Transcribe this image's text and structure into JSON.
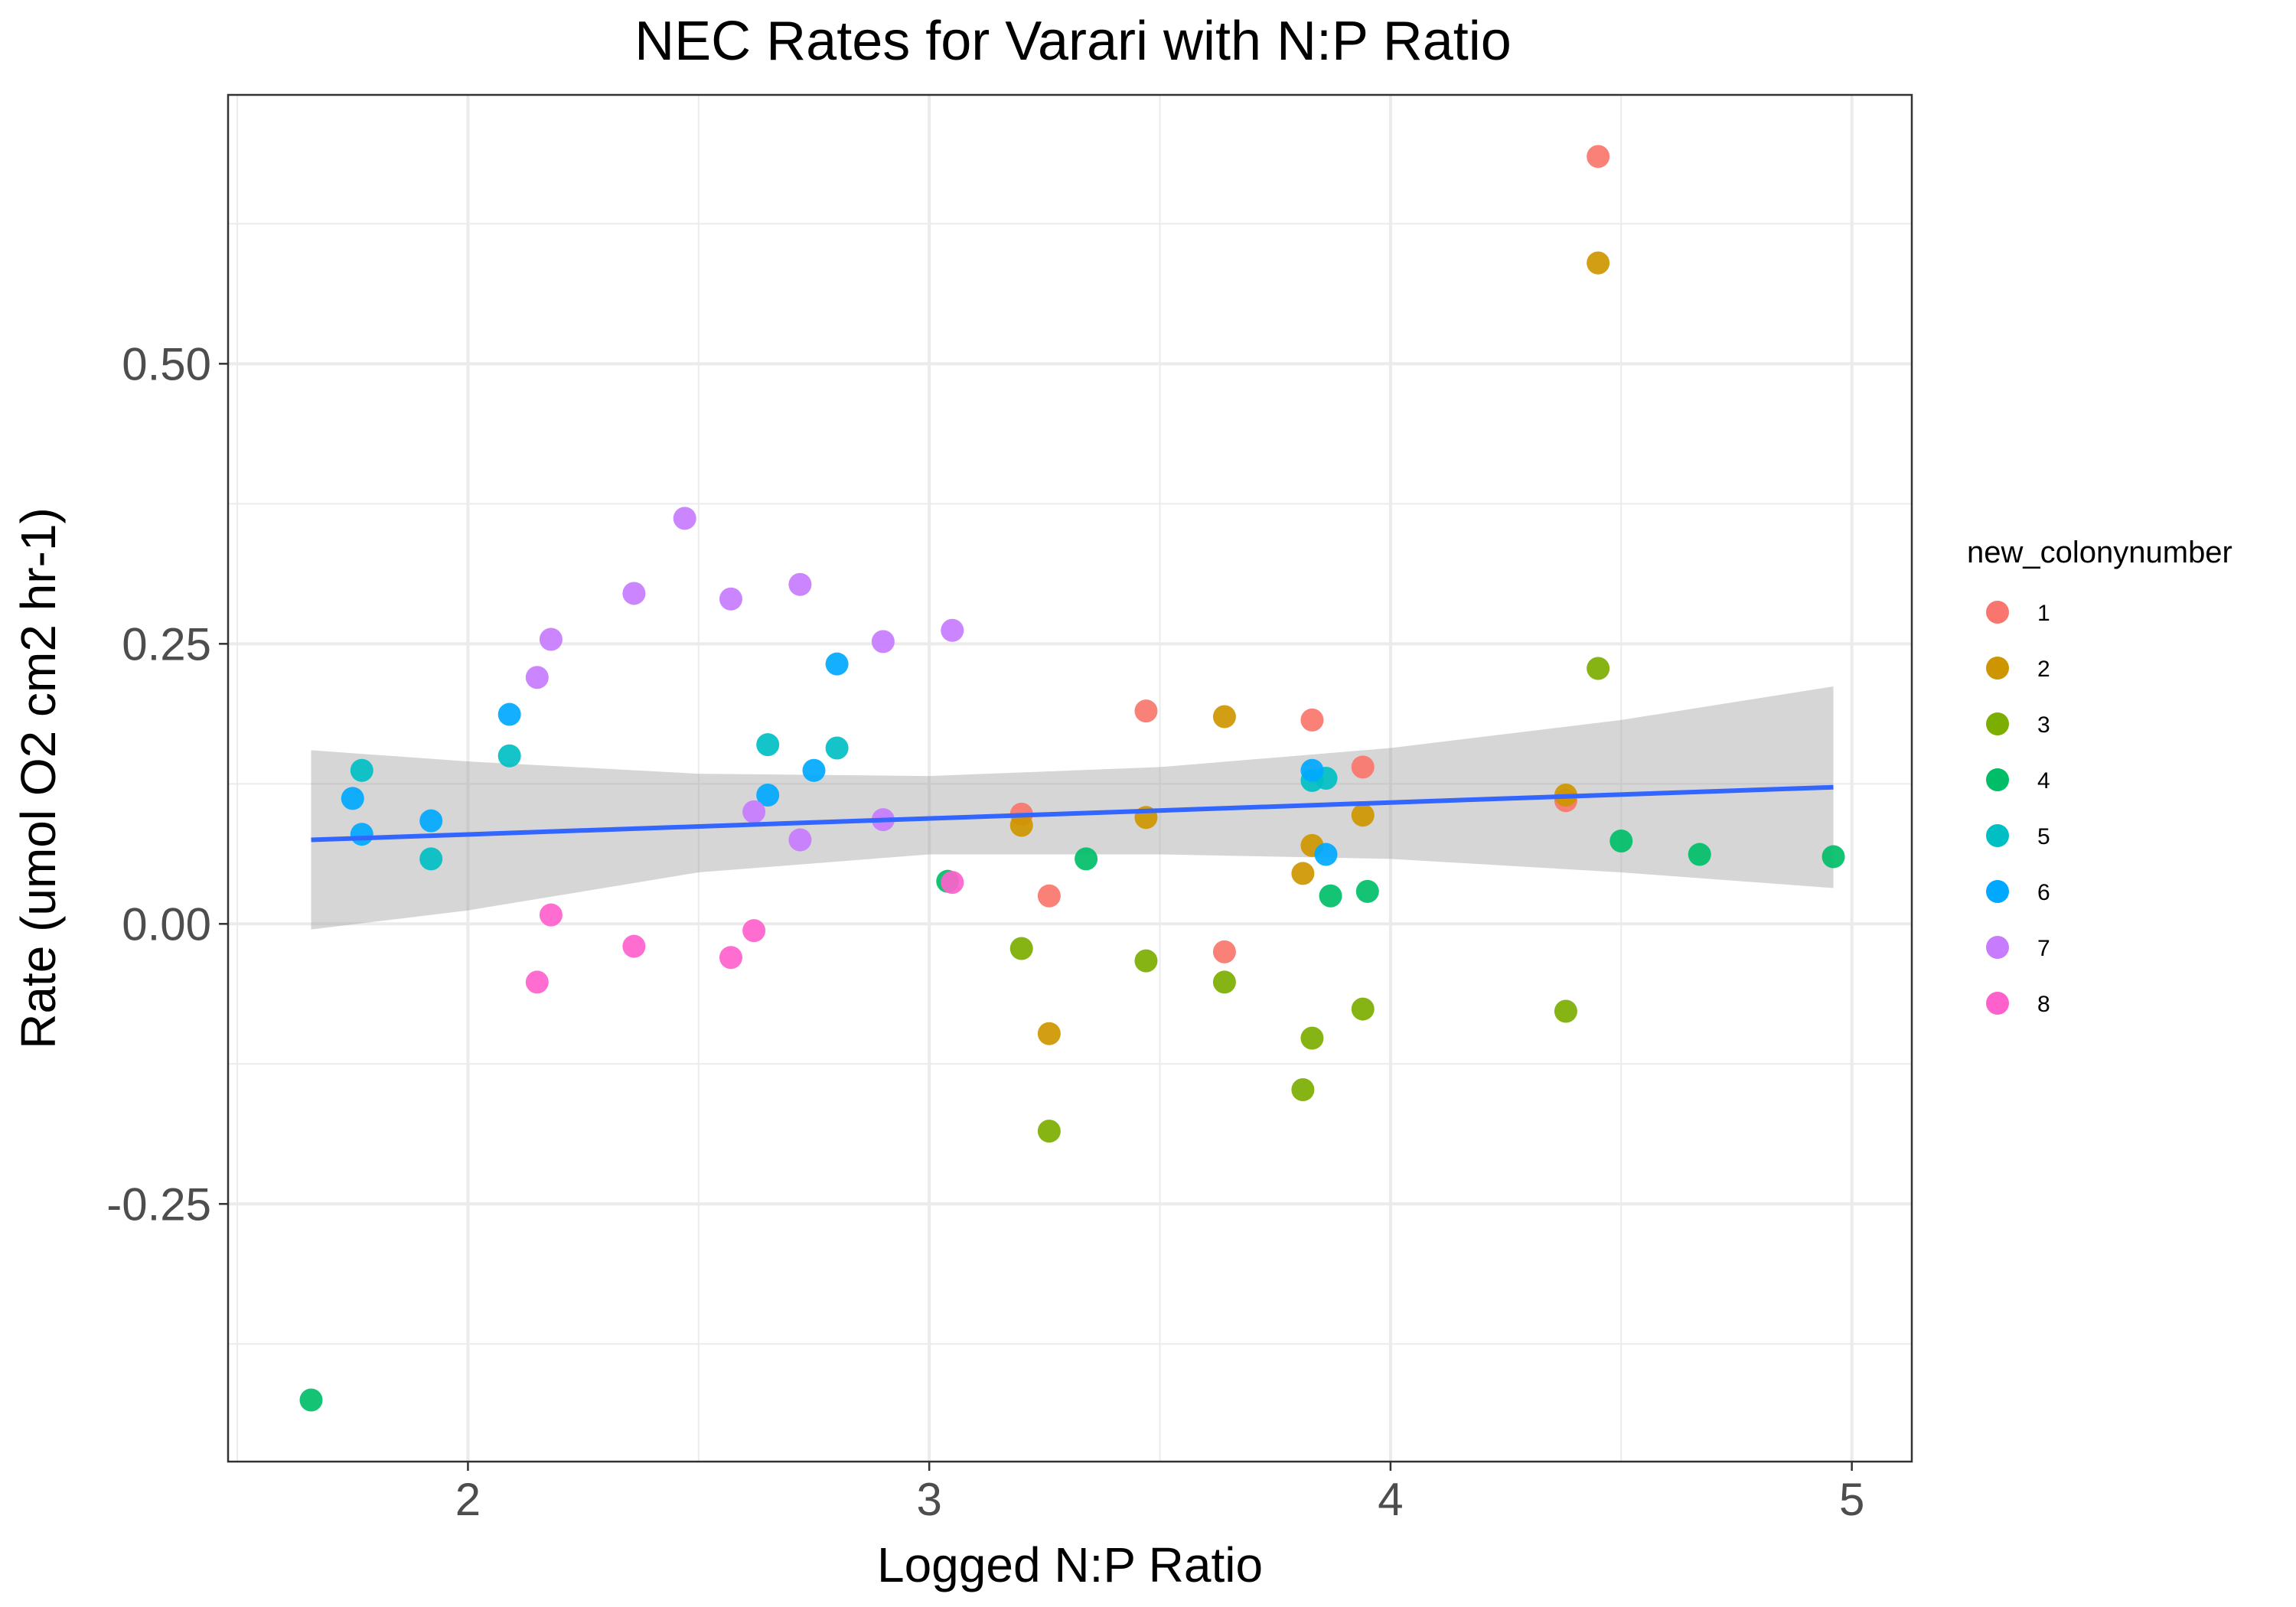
{
  "chart_data": {
    "type": "scatter",
    "title": "NEC Rates for Varari with N:P Ratio",
    "xlabel": "Logged N:P Ratio",
    "ylabel": "Rate (umol O2 cm2 hr-1)",
    "xlim": [
      1.48,
      5.13
    ],
    "ylim": [
      -0.48,
      0.74
    ],
    "x_ticks": [
      2,
      3,
      4,
      5
    ],
    "y_ticks": [
      -0.25,
      0.0,
      0.25,
      0.5
    ],
    "x_tick_labels": [
      "2",
      "3",
      "4",
      "5"
    ],
    "y_tick_labels": [
      "-0.25",
      "0.00",
      "0.25",
      "0.50"
    ],
    "grid": true,
    "legend": {
      "title": "new_colonynumber",
      "position": "right",
      "entries": [
        {
          "label": "1",
          "color": "#F8766D"
        },
        {
          "label": "2",
          "color": "#CD9600"
        },
        {
          "label": "3",
          "color": "#7CAE00"
        },
        {
          "label": "4",
          "color": "#00BE67"
        },
        {
          "label": "5",
          "color": "#00BFC4"
        },
        {
          "label": "6",
          "color": "#00A9FF"
        },
        {
          "label": "7",
          "color": "#C77CFF"
        },
        {
          "label": "8",
          "color": "#FF61CC"
        }
      ]
    },
    "series": [
      {
        "name": "1",
        "points": [
          [
            4.45,
            0.685
          ],
          [
            3.47,
            0.19
          ],
          [
            3.83,
            0.182
          ],
          [
            3.94,
            0.14
          ],
          [
            4.38,
            0.11
          ],
          [
            3.2,
            0.098
          ],
          [
            3.26,
            0.025
          ],
          [
            3.64,
            -0.025
          ]
        ]
      },
      {
        "name": "2",
        "points": [
          [
            4.45,
            0.59
          ],
          [
            3.64,
            0.185
          ],
          [
            4.38,
            0.115
          ],
          [
            3.94,
            0.097
          ],
          [
            3.47,
            0.095
          ],
          [
            3.2,
            0.088
          ],
          [
            3.83,
            0.07
          ],
          [
            3.81,
            0.045
          ],
          [
            3.26,
            -0.098
          ]
        ]
      },
      {
        "name": "3",
        "points": [
          [
            4.45,
            0.228
          ],
          [
            3.2,
            -0.022
          ],
          [
            3.47,
            -0.033
          ],
          [
            3.64,
            -0.052
          ],
          [
            3.94,
            -0.076
          ],
          [
            4.38,
            -0.078
          ],
          [
            3.83,
            -0.102
          ],
          [
            3.81,
            -0.148
          ],
          [
            3.26,
            -0.185
          ]
        ]
      },
      {
        "name": "4",
        "points": [
          [
            4.5,
            0.074
          ],
          [
            4.67,
            0.062
          ],
          [
            4.96,
            0.06
          ],
          [
            3.34,
            0.058
          ],
          [
            3.04,
            0.038
          ],
          [
            3.95,
            0.029
          ],
          [
            3.87,
            0.025
          ],
          [
            1.66,
            -0.425
          ]
        ]
      },
      {
        "name": "5",
        "points": [
          [
            2.65,
            0.16
          ],
          [
            2.8,
            0.157
          ],
          [
            2.09,
            0.15
          ],
          [
            1.77,
            0.137
          ],
          [
            3.86,
            0.13
          ],
          [
            3.83,
            0.128
          ],
          [
            1.92,
            0.058
          ]
        ]
      },
      {
        "name": "6",
        "points": [
          [
            2.8,
            0.232
          ],
          [
            2.09,
            0.187
          ],
          [
            2.75,
            0.137
          ],
          [
            3.83,
            0.137
          ],
          [
            2.65,
            0.115
          ],
          [
            1.75,
            0.112
          ],
          [
            1.92,
            0.092
          ],
          [
            1.77,
            0.08
          ],
          [
            3.86,
            0.062
          ]
        ]
      },
      {
        "name": "7",
        "points": [
          [
            2.47,
            0.362
          ],
          [
            2.36,
            0.295
          ],
          [
            2.72,
            0.303
          ],
          [
            2.57,
            0.29
          ],
          [
            3.05,
            0.262
          ],
          [
            2.18,
            0.254
          ],
          [
            2.9,
            0.252
          ],
          [
            2.15,
            0.22
          ],
          [
            2.62,
            0.1
          ],
          [
            2.9,
            0.093
          ],
          [
            2.72,
            0.075
          ]
        ]
      },
      {
        "name": "8",
        "points": [
          [
            3.05,
            0.037
          ],
          [
            2.18,
            0.008
          ],
          [
            2.62,
            -0.006
          ],
          [
            2.36,
            -0.02
          ],
          [
            2.57,
            -0.03
          ],
          [
            2.15,
            -0.052
          ]
        ]
      }
    ],
    "trend_line": {
      "type": "linear",
      "color": "#3366FF",
      "points": [
        [
          1.66,
          0.075
        ],
        [
          4.96,
          0.122
        ]
      ],
      "confidence_band": {
        "x": [
          1.66,
          2.0,
          2.5,
          3.0,
          3.5,
          4.0,
          4.5,
          4.96
        ],
        "upper": [
          0.155,
          0.145,
          0.134,
          0.132,
          0.14,
          0.157,
          0.182,
          0.212
        ],
        "lower": [
          -0.005,
          0.012,
          0.046,
          0.062,
          0.062,
          0.058,
          0.046,
          0.032
        ]
      }
    }
  }
}
